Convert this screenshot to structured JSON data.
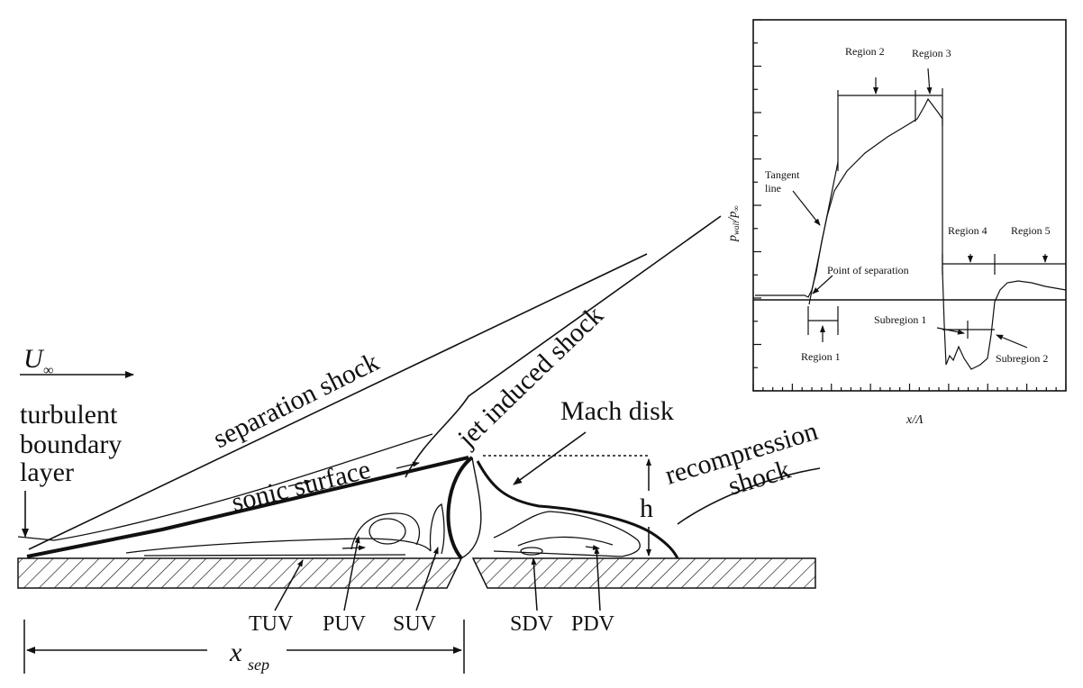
{
  "main_labels": {
    "u_inf": "U",
    "u_inf_sub": "∞",
    "turbulent_1": "turbulent",
    "turbulent_2": "boundary",
    "turbulent_3": "layer",
    "separation_shock": "separation shock",
    "jet_induced_shock": "jet induced shock",
    "sonic_surface": "sonic surface",
    "mach_disk": "Mach disk",
    "recompression_1": "recompression",
    "recompression_2": "shock",
    "h": "h",
    "x_sep": "x",
    "x_sep_sub": "sep"
  },
  "vortices": [
    "TUV",
    "PUV",
    "SUV",
    "SDV",
    "PDV"
  ],
  "inset": {
    "ylabel": "p",
    "ylabel_sub1": "wall",
    "ylabel_mid": "/p",
    "ylabel_sub2": "∞",
    "xlabel": "x/Λ",
    "region2": "Region 2",
    "region3": "Region 3",
    "tangent_1": "Tangent",
    "tangent_2": "line",
    "point_sep": "Point of separation",
    "region4": "Region 4",
    "region5": "Region 5",
    "subregion1": "Subregion 1",
    "region1": "Region 1",
    "subregion2": "Subregion 2"
  },
  "colors": {
    "ink": "#111111",
    "background": "#ffffff"
  }
}
